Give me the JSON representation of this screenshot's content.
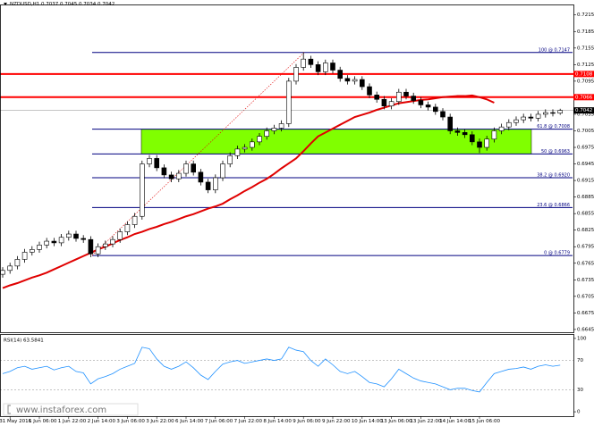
{
  "chart_data": {
    "type": "candlestick",
    "title": "NZDUSD,H1 0.7037 0.7045 0.7034 0.7042",
    "categories": [
      null,
      "31 May 2016",
      null,
      null,
      null,
      "1 Jun 06:00",
      null,
      null,
      null,
      "1 Jun 22:00",
      null,
      null,
      null,
      "2 Jun 14:00",
      null,
      null,
      null,
      "3 Jun 06:00",
      null,
      null,
      null,
      "3 Jun 22:00",
      null,
      null,
      null,
      "6 Jun 14:00",
      null,
      null,
      null,
      "7 Jun 06:00",
      null,
      null,
      null,
      "7 Jun 22:00",
      null,
      null,
      null,
      "8 Jun 14:00",
      null,
      null,
      null,
      "9 Jun 06:00",
      null,
      null,
      null,
      "9 Jun 22:00",
      null,
      null,
      null,
      "10 Jun 14:00",
      null,
      null,
      null,
      "13 Jun 06:00",
      null,
      null,
      null,
      "13 Jun 22:00",
      null,
      null,
      null,
      "14 Jun 14:00",
      null,
      null,
      null,
      "15 Jun 06:00",
      null,
      null,
      null,
      null,
      null,
      null,
      null,
      null,
      null,
      null,
      null
    ],
    "ohlc": {
      "open": [
        0.6745,
        0.6752,
        0.676,
        0.6772,
        0.6785,
        0.679,
        0.6798,
        0.6805,
        0.6802,
        0.6812,
        0.6818,
        0.681,
        0.6808,
        0.6782,
        0.6795,
        0.68,
        0.6808,
        0.6822,
        0.6835,
        0.685,
        0.6945,
        0.6955,
        0.6938,
        0.6925,
        0.6918,
        0.6928,
        0.6945,
        0.693,
        0.6912,
        0.6898,
        0.692,
        0.6945,
        0.696,
        0.6972,
        0.6975,
        0.6985,
        0.6995,
        0.7005,
        0.701,
        0.7018,
        0.7095,
        0.712,
        0.7135,
        0.7125,
        0.7112,
        0.7128,
        0.7115,
        0.71,
        0.7095,
        0.7098,
        0.7085,
        0.707,
        0.7062,
        0.705,
        0.7058,
        0.7075,
        0.7068,
        0.706,
        0.7052,
        0.7048,
        0.704,
        0.703,
        0.7005,
        0.7002,
        0.6998,
        0.6985,
        0.6975,
        0.699,
        0.7005,
        0.7012,
        0.702,
        0.7025,
        0.703,
        0.7028,
        0.7035,
        0.7038,
        0.7037
      ],
      "high": [
        0.6758,
        0.6766,
        0.6778,
        0.6791,
        0.6796,
        0.6804,
        0.6811,
        0.6811,
        0.6818,
        0.6824,
        0.6824,
        0.6816,
        0.6814,
        0.6801,
        0.6806,
        0.6814,
        0.6828,
        0.6841,
        0.6856,
        0.6951,
        0.6961,
        0.6961,
        0.6944,
        0.6931,
        0.6934,
        0.6951,
        0.6951,
        0.6936,
        0.6918,
        0.6926,
        0.6951,
        0.6966,
        0.6978,
        0.6981,
        0.6991,
        0.7001,
        0.7011,
        0.7016,
        0.7024,
        0.7101,
        0.7126,
        0.7147,
        0.7141,
        0.7131,
        0.7134,
        0.7134,
        0.7121,
        0.7106,
        0.7104,
        0.7104,
        0.7091,
        0.7076,
        0.7068,
        0.7064,
        0.7081,
        0.7081,
        0.7074,
        0.7066,
        0.7058,
        0.7054,
        0.7046,
        0.7036,
        0.7011,
        0.7008,
        0.7004,
        0.6991,
        0.6996,
        0.7011,
        0.7018,
        0.7026,
        0.7031,
        0.7036,
        0.7036,
        0.7041,
        0.7044,
        0.7044,
        0.7045
      ],
      "low": [
        0.6739,
        0.6746,
        0.6754,
        0.6766,
        0.6779,
        0.6784,
        0.6792,
        0.6796,
        0.6796,
        0.6806,
        0.6804,
        0.6802,
        0.6776,
        0.6776,
        0.6789,
        0.6794,
        0.6802,
        0.6816,
        0.6829,
        0.6844,
        0.6939,
        0.6932,
        0.6919,
        0.6912,
        0.6912,
        0.6922,
        0.6924,
        0.6906,
        0.6892,
        0.6892,
        0.6914,
        0.6939,
        0.6954,
        0.6966,
        0.6969,
        0.6979,
        0.6989,
        0.6999,
        0.7004,
        0.7012,
        0.7089,
        0.7114,
        0.7119,
        0.7106,
        0.7106,
        0.7109,
        0.7094,
        0.7089,
        0.7089,
        0.7079,
        0.7064,
        0.7056,
        0.7044,
        0.7044,
        0.7052,
        0.7062,
        0.7054,
        0.7046,
        0.7042,
        0.7034,
        0.7024,
        0.6999,
        0.6996,
        0.6992,
        0.6979,
        0.6965,
        0.6969,
        0.6984,
        0.6999,
        0.7006,
        0.7014,
        0.7019,
        0.7022,
        0.7022,
        0.7029,
        0.7031,
        0.7034
      ],
      "close": [
        0.6752,
        0.676,
        0.6772,
        0.6785,
        0.679,
        0.6798,
        0.6805,
        0.6802,
        0.6812,
        0.6818,
        0.681,
        0.6808,
        0.6782,
        0.6795,
        0.68,
        0.6808,
        0.6822,
        0.6835,
        0.685,
        0.6945,
        0.6955,
        0.6938,
        0.6925,
        0.6918,
        0.6928,
        0.6945,
        0.693,
        0.6912,
        0.6898,
        0.692,
        0.6945,
        0.696,
        0.6972,
        0.6975,
        0.6985,
        0.6995,
        0.7005,
        0.701,
        0.7018,
        0.7095,
        0.712,
        0.7135,
        0.7125,
        0.7112,
        0.7128,
        0.7115,
        0.71,
        0.7095,
        0.7098,
        0.7085,
        0.707,
        0.7062,
        0.705,
        0.7058,
        0.7075,
        0.7068,
        0.706,
        0.7052,
        0.7048,
        0.704,
        0.703,
        0.7005,
        0.7002,
        0.6998,
        0.6985,
        0.6975,
        0.699,
        0.7005,
        0.7012,
        0.702,
        0.7025,
        0.703,
        0.7028,
        0.7035,
        0.7038,
        0.7037,
        0.7042
      ]
    },
    "up_color": "#ffffff",
    "down_color": "#000000",
    "wick_color": "#000000",
    "moving_average": {
      "color": "#e00000",
      "values": [
        0.672,
        0.6725,
        0.6729,
        0.6734,
        0.6739,
        0.6743,
        0.6748,
        0.6754,
        0.676,
        0.6766,
        0.6772,
        0.6778,
        0.6784,
        0.679,
        0.6795,
        0.6801,
        0.6807,
        0.6812,
        0.6818,
        0.6822,
        0.6827,
        0.6831,
        0.6836,
        0.684,
        0.6845,
        0.685,
        0.6854,
        0.6859,
        0.6864,
        0.6868,
        0.6873,
        0.6881,
        0.6888,
        0.6896,
        0.6903,
        0.6911,
        0.6918,
        0.6927,
        0.6937,
        0.6946,
        0.6955,
        0.6968,
        0.6982,
        0.6995,
        0.7002,
        0.7009,
        0.7016,
        0.7023,
        0.703,
        0.7034,
        0.7038,
        0.7043,
        0.7047,
        0.7051,
        0.7055,
        0.7057,
        0.7059,
        0.7061,
        0.7062,
        0.7064,
        0.7066,
        0.7067,
        0.7068,
        0.7068,
        0.7069,
        0.7066,
        0.7062,
        0.7056,
        null,
        null,
        null,
        null,
        null,
        null,
        null,
        null,
        null
      ]
    },
    "fibonacci": {
      "color": "#000080",
      "trend_color": "#e00000",
      "levels": [
        {
          "value": 0.7147,
          "label": "100 @ 0.7147"
        },
        {
          "value": 0.7008,
          "label": "61.8 @ 0.7008"
        },
        {
          "value": 0.6963,
          "label": "50 @ 0.6963"
        },
        {
          "value": 0.692,
          "label": "38.2 @ 0.6920"
        },
        {
          "value": 0.6866,
          "label": "23.6 @ 0.6866"
        },
        {
          "value": 0.6779,
          "label": "0 @ 0.6779"
        }
      ]
    },
    "zone": [
      0.6963,
      0.7008
    ],
    "zone_color": "#80ff00",
    "resistance_levels": [
      0.7108,
      0.7066
    ],
    "resistance_color": "#ff0000",
    "current_price": 0.7042,
    "ylim": [
      0.664,
      0.7234
    ],
    "yticks": [
      0.7215,
      0.7185,
      0.7155,
      0.7125,
      0.7095,
      0.7065,
      0.7035,
      0.7005,
      0.6975,
      0.6945,
      0.6915,
      0.6885,
      0.6855,
      0.6825,
      0.6795,
      0.6765,
      0.6735,
      0.6705,
      0.6675,
      0.6645
    ],
    "rsi": {
      "label": "RSI(14) 63.5841",
      "color": "#1e90ff",
      "ylim": [
        -6,
        106
      ],
      "yticks": [
        100,
        70,
        30,
        0
      ],
      "values": [
        52,
        55,
        60,
        62,
        58,
        60,
        62,
        57,
        60,
        62,
        55,
        53,
        38,
        45,
        48,
        52,
        58,
        62,
        66,
        88,
        86,
        72,
        62,
        58,
        62,
        68,
        60,
        50,
        44,
        55,
        65,
        68,
        70,
        66,
        68,
        70,
        72,
        70,
        72,
        88,
        84,
        82,
        70,
        62,
        72,
        64,
        55,
        52,
        55,
        48,
        40,
        38,
        34,
        45,
        58,
        52,
        46,
        42,
        40,
        38,
        34,
        30,
        32,
        32,
        29,
        27,
        40,
        52,
        55,
        58,
        59,
        61,
        58,
        62,
        64,
        62,
        63.5841
      ]
    },
    "watermark": "www.instaforex.com"
  }
}
